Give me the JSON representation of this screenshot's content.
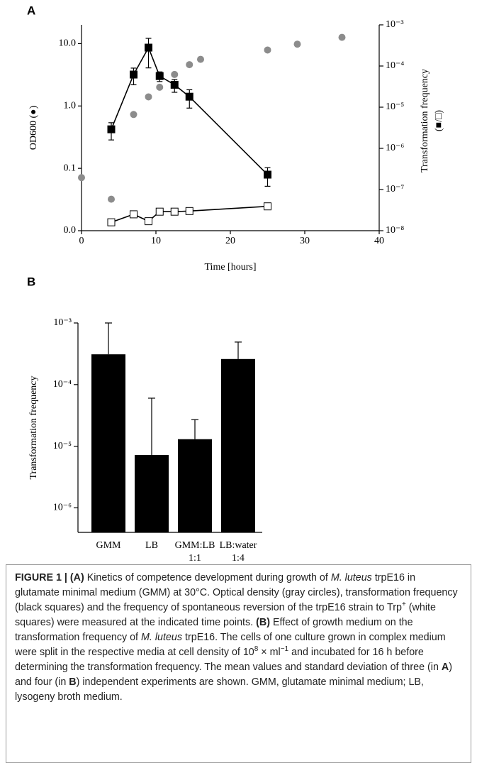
{
  "chart_data": [
    {
      "type": "line",
      "panel_label": "A",
      "xlabel": "Time [hours]",
      "ylabel": "OD600 (●)",
      "y2label": [
        "Transformation frequency",
        "(■/□)"
      ],
      "xlim": [
        0,
        40
      ],
      "xticks": [
        0,
        10,
        20,
        30,
        40
      ],
      "ylim": [
        0.01,
        20
      ],
      "ylog": true,
      "yticks": [
        {
          "value": 0.01,
          "label": "0.0"
        },
        0.1,
        {
          "value": 1,
          "label": "1.0"
        },
        {
          "value": 10,
          "label": "10.0"
        }
      ],
      "y2lim": [
        1e-08,
        0.001
      ],
      "y2log": true,
      "y2ticks": [
        {
          "value": 1e-08,
          "label": "10⁻⁸"
        },
        {
          "value": 1e-07,
          "label": "10⁻⁷"
        },
        {
          "value": 1e-06,
          "label": "10⁻⁶"
        },
        {
          "value": 1e-05,
          "label": "10⁻⁵"
        },
        {
          "value": 0.0001,
          "label": "10⁻⁴"
        },
        {
          "value": 0.001,
          "label": "10⁻³"
        }
      ],
      "series": [
        {
          "marker": "circle",
          "color": "#8c8c8c",
          "connect": false,
          "x": [
            0,
            4,
            7,
            9,
            10.5,
            12.5,
            14.5,
            16,
            25,
            29,
            35
          ],
          "values": [
            0.071,
            0.032,
            0.73,
            1.4,
            2.0,
            3.2,
            4.6,
            5.6,
            7.9,
            9.8,
            12.6
          ]
        },
        {
          "marker": "square",
          "color": "#000000",
          "connect": true,
          "axis": "y2",
          "x": [
            4,
            7,
            9,
            10.5,
            12.5,
            14.5,
            25
          ],
          "values": [
            2.9e-06,
            6.2e-05,
            0.00028,
            5.7e-05,
            3.5e-05,
            1.8e-05,
            2.3e-07
          ],
          "errors": [
            1.3e-06,
            2.7e-05,
            0.00019,
            1.5e-05,
            1.2e-05,
            8.5e-06,
            1.1e-07
          ]
        },
        {
          "marker": "square",
          "color": "#ffffff",
          "connect": true,
          "axis": "y2",
          "x": [
            4,
            7,
            9,
            10.5,
            12.5,
            14.5,
            25
          ],
          "values": [
            1.6e-08,
            2.5e-08,
            1.7e-08,
            2.9e-08,
            2.9e-08,
            3e-08,
            3.9e-08
          ]
        }
      ]
    },
    {
      "type": "bar",
      "panel_label": "B",
      "ylabel": "Transformation frequency",
      "color": "#000000",
      "categories": [
        [
          "GMM"
        ],
        [
          "LB"
        ],
        [
          "GMM:LB",
          "1:1"
        ],
        [
          "LB:water",
          "1:4"
        ]
      ],
      "values": [
        0.00031,
        7.2e-06,
        1.3e-05,
        0.00026
      ],
      "errors": [
        0.0007,
        5.3e-05,
        1.4e-05,
        0.00023
      ],
      "ylim": [
        4e-07,
        0.001
      ],
      "ylog": true,
      "yticks": [
        {
          "value": 1e-06,
          "label": "10⁻⁶"
        },
        {
          "value": 1e-05,
          "label": "10⁻⁵"
        },
        {
          "value": 0.0001,
          "label": "10⁻⁴"
        },
        {
          "value": 0.001,
          "label": "10⁻³"
        }
      ]
    }
  ],
  "caption": [
    {
      "text": "FIGURE 1 | (A)",
      "style": "bold"
    },
    {
      "text": " Kinetics of competence development during growth of "
    },
    {
      "text": "M. luteus",
      "style": "italic"
    },
    {
      "text": " trpE16 in glutamate minimal medium (GMM) at 30°C. Optical density (gray circles), transformation frequency (black squares) and the frequency of spontaneous reversion of the trpE16 strain to Trp"
    },
    {
      "text": "+",
      "style": "sup"
    },
    {
      "text": " (white squares) were measured at the indicated time points. "
    },
    {
      "text": "(B)",
      "style": "bold"
    },
    {
      "text": " Effect of growth medium on the transformation frequency of "
    },
    {
      "text": "M. luteus",
      "style": "italic"
    },
    {
      "text": " trpE16. The cells of one culture grown in complex medium were split in the respective media at cell density of 10"
    },
    {
      "text": "8",
      "style": "sup"
    },
    {
      "text": " × ml"
    },
    {
      "text": "−1",
      "style": "sup"
    },
    {
      "text": " and incubated for 16 h before determining the transformation frequency. The mean values and standard deviation of three (in "
    },
    {
      "text": "A",
      "style": "bold"
    },
    {
      "text": ") and four (in "
    },
    {
      "text": "B",
      "style": "bold"
    },
    {
      "text": ") independent experiments are shown. GMM, glutamate minimal medium; LB, lysogeny broth medium."
    }
  ]
}
